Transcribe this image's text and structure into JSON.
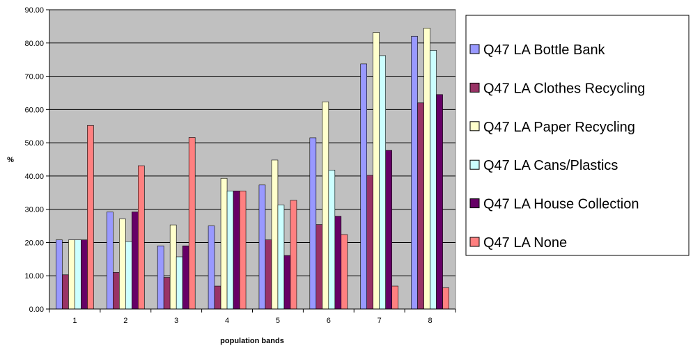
{
  "chart_data": {
    "type": "bar",
    "title": "",
    "xlabel": "population bands",
    "ylabel": "%",
    "ylim": [
      0,
      90
    ],
    "ytick_step": 10,
    "ytick_labels": [
      "0.00",
      "10.00",
      "20.00",
      "30.00",
      "40.00",
      "50.00",
      "60.00",
      "70.00",
      "80.00",
      "90.00"
    ],
    "grid": true,
    "legend_position": "right",
    "categories": [
      "1",
      "2",
      "3",
      "4",
      "5",
      "6",
      "7",
      "8"
    ],
    "series": [
      {
        "name": "Q47 LA Bottle Bank",
        "color": "#9999FF",
        "values": [
          20.8,
          29.2,
          19.0,
          25.0,
          37.3,
          51.5,
          73.7,
          82.0
        ]
      },
      {
        "name": "Q47 LA Clothes Recycling",
        "color": "#993366",
        "values": [
          10.3,
          11.0,
          9.5,
          6.9,
          20.8,
          25.4,
          40.2,
          62.0
        ]
      },
      {
        "name": "Q47 LA Paper Recycling",
        "color": "#FFFFCC",
        "values": [
          20.8,
          27.1,
          25.3,
          39.3,
          44.8,
          62.3,
          83.2,
          84.5
        ]
      },
      {
        "name": "Q47 LA Cans/Plastics",
        "color": "#CCFFFF",
        "values": [
          20.8,
          20.3,
          15.7,
          35.5,
          31.3,
          41.8,
          76.2,
          77.8
        ]
      },
      {
        "name": "Q47 LA House Collection",
        "color": "#660066",
        "values": [
          20.8,
          29.2,
          19.0,
          35.5,
          16.1,
          27.9,
          47.7,
          64.5
        ]
      },
      {
        "name": "Q47 LA None",
        "color": "#FF8080",
        "values": [
          55.2,
          43.1,
          51.6,
          35.5,
          32.7,
          22.4,
          6.9,
          6.4
        ]
      }
    ]
  }
}
